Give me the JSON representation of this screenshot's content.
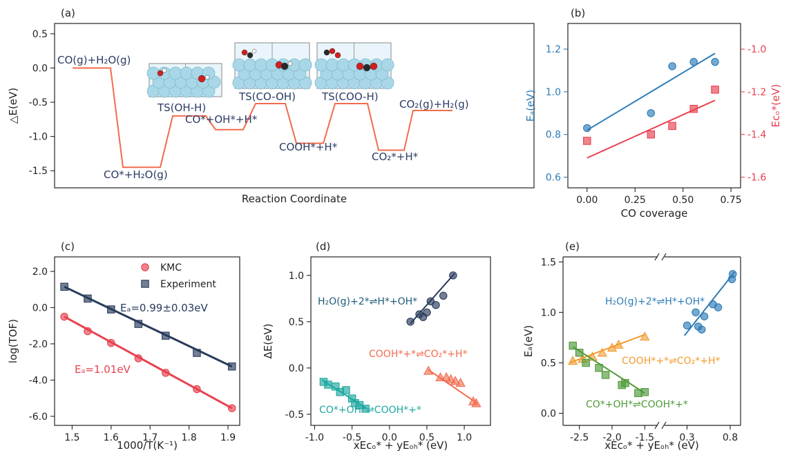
{
  "colors": {
    "orange": "#F26B4C",
    "blue": "#2C7BB6",
    "red": "#E8414E",
    "navy": "#283B5B",
    "teal": "#1FA7A0",
    "green": "#4F9A3A",
    "amber": "#F29A2E",
    "label_navy": "#2B3A64",
    "atom_light": "#A9D7E8",
    "atom_red": "#D41E1E",
    "atom_dark": "#2A2A2A"
  },
  "chart_data": [
    {
      "panel": "(a)",
      "type": "line",
      "ylabel": "△E(eV)",
      "xlabel": "Reaction Coordinate",
      "ylim": [
        -1.75,
        0.65
      ],
      "yticks": [
        0.5,
        0.0,
        -0.5,
        -1.0,
        -1.5
      ],
      "ytick_labels": [
        "0.5",
        "0.0",
        "-0.5",
        "-1.0",
        "-1.5"
      ],
      "levels": [
        {
          "label": "CO(g)+H₂O(g)",
          "value": 0.0
        },
        {
          "label": "CO*+H₂O(g)",
          "value": -1.45
        },
        {
          "label": "TS(OH-H)",
          "value": -0.7
        },
        {
          "label": "CO*+OH*+H*",
          "value": -0.9
        },
        {
          "label": "TS(CO-OH)",
          "value": -0.52
        },
        {
          "label": "COOH*+H*",
          "value": -1.1
        },
        {
          "label": "TS(COO-H)",
          "value": -0.52
        },
        {
          "label": "CO₂*+H*",
          "value": -1.2
        },
        {
          "label": "CO₂(g)+H₂(g)",
          "value": -0.62
        }
      ]
    },
    {
      "panel": "(b)",
      "type": "scatter",
      "xlabel": "CO coverage",
      "ylabel": "Eₐ(eV)",
      "y2label": "Eᴄₒ*(eV)",
      "xlim": [
        -0.1,
        0.8
      ],
      "ylim": [
        0.55,
        1.32
      ],
      "y2lim": [
        -1.65,
        -0.88
      ],
      "xticks": [
        0.0,
        0.25,
        0.5,
        0.75
      ],
      "xtick_labels": [
        "0.00",
        "0.25",
        "0.50",
        "0.75"
      ],
      "yticks": [
        0.6,
        0.8,
        1.0,
        1.2
      ],
      "ytick_labels": [
        "0.6",
        "0.8",
        "1.0",
        "1.2"
      ],
      "y2ticks": [
        -1.6,
        -1.4,
        -1.2,
        -1.0
      ],
      "y2tick_labels": [
        "-1.6",
        "-1.4",
        "-1.2",
        "-1.0"
      ],
      "series": [
        {
          "axis": "left",
          "x": [
            0.0,
            0.333,
            0.444,
            0.556,
            0.667
          ],
          "y": [
            0.83,
            0.9,
            1.12,
            1.14,
            1.14
          ],
          "fit": [
            [
              0.0,
              0.82
            ],
            [
              0.667,
              1.18
            ]
          ]
        },
        {
          "axis": "right",
          "x": [
            0.0,
            0.333,
            0.444,
            0.556,
            0.667
          ],
          "y": [
            -1.43,
            -1.4,
            -1.36,
            -1.28,
            -1.19
          ],
          "fit": [
            [
              0.0,
              -1.51
            ],
            [
              0.667,
              -1.24
            ]
          ]
        }
      ]
    },
    {
      "panel": "(c)",
      "type": "line",
      "xlabel": "1000/T(K⁻¹)",
      "ylabel": "log(TOF)",
      "xlim": [
        1.455,
        1.93
      ],
      "ylim": [
        -6.5,
        2.8
      ],
      "xticks": [
        1.5,
        1.6,
        1.7,
        1.8,
        1.9
      ],
      "xtick_labels": [
        "1.5",
        "1.6",
        "1.7",
        "1.8",
        "1.9"
      ],
      "yticks": [
        2,
        0,
        -2,
        -4,
        -6
      ],
      "ytick_labels": [
        "2.0",
        "0.0",
        "-2.0",
        "-4.0",
        "-6.0"
      ],
      "legend": [
        "KMC",
        "Experiment"
      ],
      "annotations": [
        "Eₐ=0.99±0.03eV",
        "Eₐ=1.01eV"
      ],
      "series": [
        {
          "name": "KMC",
          "x": [
            1.48,
            1.54,
            1.6,
            1.67,
            1.74,
            1.82,
            1.91
          ],
          "y": [
            -0.5,
            -1.3,
            -1.95,
            -2.8,
            -3.6,
            -4.5,
            -5.55
          ]
        },
        {
          "name": "Experiment",
          "x": [
            1.48,
            1.54,
            1.6,
            1.67,
            1.74,
            1.82,
            1.91
          ],
          "y": [
            1.15,
            0.5,
            -0.1,
            -0.9,
            -1.55,
            -2.5,
            -3.25
          ]
        }
      ]
    },
    {
      "panel": "(d)",
      "type": "scatter",
      "xlabel": "xEᴄₒ* + yEₒₕ* (eV)",
      "ylabel": "ΔE(eV)",
      "xlim": [
        -1.05,
        1.35
      ],
      "ylim": [
        -0.62,
        1.2
      ],
      "xticks": [
        -1.0,
        -0.5,
        0.0,
        0.5,
        1.0
      ],
      "xtick_labels": [
        "-1.0",
        "-0.5",
        "0.0",
        "0.5",
        "1.0"
      ],
      "yticks": [
        1.0,
        0.5,
        0.0,
        -0.5
      ],
      "ytick_labels": [
        "1.0",
        "0.5",
        "0.0",
        "-0.5"
      ],
      "series": [
        {
          "name": "H₂O(g)+2*⇌H*+OH*",
          "marker": "circle",
          "x": [
            0.28,
            0.4,
            0.45,
            0.5,
            0.55,
            0.62,
            0.72,
            0.85
          ],
          "y": [
            0.5,
            0.58,
            0.55,
            0.6,
            0.72,
            0.68,
            0.78,
            1.0
          ],
          "fit": [
            [
              0.28,
              0.48
            ],
            [
              0.87,
              1.02
            ]
          ]
        },
        {
          "name": "COOH*+*⇌CO₂*+H*",
          "marker": "triangle",
          "x": [
            0.52,
            0.68,
            0.76,
            0.82,
            0.88,
            0.95,
            1.12,
            1.16
          ],
          "y": [
            -0.03,
            -0.1,
            -0.1,
            -0.12,
            -0.14,
            -0.16,
            -0.36,
            -0.38
          ],
          "fit": [
            [
              0.52,
              -0.02
            ],
            [
              1.17,
              -0.38
            ]
          ]
        },
        {
          "name": "CO*+OH*⇌COOH*+*",
          "marker": "square",
          "x": [
            -0.88,
            -0.82,
            -0.72,
            -0.66,
            -0.58,
            -0.5,
            -0.46,
            -0.4,
            -0.32
          ],
          "y": [
            -0.15,
            -0.18,
            -0.2,
            -0.26,
            -0.24,
            -0.33,
            -0.38,
            -0.4,
            -0.44
          ],
          "fit": [
            [
              -0.9,
              -0.13
            ],
            [
              -0.3,
              -0.44
            ]
          ]
        }
      ]
    },
    {
      "panel": "(e)",
      "type": "scatter",
      "xlabel": "xEᴄₒ* + yEₒₕ* (eV)",
      "ylabel": "Eₐ(eV)",
      "ylim": [
        -0.12,
        1.55
      ],
      "xtick_labels": [
        "-2.5",
        "-2.0",
        "-1.5",
        "0.3",
        "0.8"
      ],
      "yticks": [
        0.0,
        0.5,
        1.0,
        1.5
      ],
      "ytick_labels": [
        "0.0",
        "0.5",
        "1.0",
        "1.5"
      ],
      "broken_axis": true,
      "series": [
        {
          "name": "H₂O(g)+2*⇌H*+OH*",
          "marker": "circle",
          "x": [
            0.3,
            0.4,
            0.43,
            0.47,
            0.5,
            0.6,
            0.66,
            0.82,
            0.83
          ],
          "y": [
            0.87,
            1.0,
            0.86,
            0.83,
            0.96,
            1.08,
            1.05,
            1.33,
            1.38
          ],
          "fit": [
            [
              0.27,
              0.77
            ],
            [
              0.85,
              1.4
            ]
          ]
        },
        {
          "name": "COOH*+*⇌CO₂*+H*",
          "marker": "triangle",
          "x": [
            -2.6,
            -2.45,
            -2.3,
            -2.15,
            -2.0,
            -1.9,
            -1.5
          ],
          "y": [
            0.52,
            0.54,
            0.56,
            0.6,
            0.65,
            0.68,
            0.76
          ],
          "fit": [
            [
              -2.65,
              0.5
            ],
            [
              -1.5,
              0.78
            ]
          ]
        },
        {
          "name": "CO*+OH*⇌COOH*+*",
          "marker": "square",
          "x": [
            -2.6,
            -2.5,
            -2.4,
            -2.2,
            -2.1,
            -1.85,
            -1.8,
            -1.6,
            -1.5
          ],
          "y": [
            0.67,
            0.6,
            0.5,
            0.45,
            0.38,
            0.28,
            0.3,
            0.2,
            0.21
          ],
          "fit": [
            [
              -2.6,
              0.66
            ],
            [
              -1.5,
              0.2
            ]
          ]
        }
      ]
    }
  ]
}
